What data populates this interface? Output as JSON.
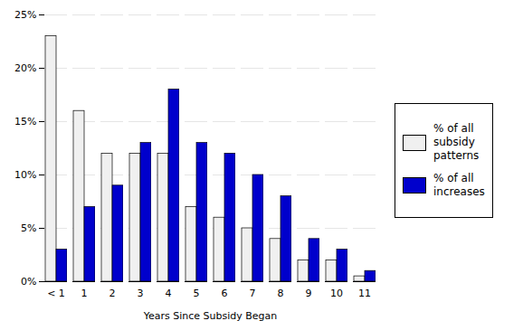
{
  "chart_data": {
    "type": "bar",
    "categories": [
      "< 1",
      "1",
      "2",
      "3",
      "4",
      "5",
      "6",
      "7",
      "8",
      "9",
      "10",
      "11"
    ],
    "series": [
      {
        "name": "% of all\nsubsidy\npatterns",
        "color": "#f0f0f0",
        "values": [
          23,
          16,
          12,
          12,
          12,
          7,
          6,
          5,
          4,
          2,
          2,
          0.5
        ]
      },
      {
        "name": "% of all\nincreases",
        "color": "#0000cc",
        "values": [
          3,
          7,
          9,
          13,
          18,
          13,
          12,
          10,
          8,
          4,
          3,
          1
        ]
      }
    ],
    "xlabel": "Years Since Subsidy Began",
    "ylim": [
      0,
      25
    ],
    "yticks": [
      {
        "value": 0,
        "label": "0%"
      },
      {
        "value": 5,
        "label": "5%"
      },
      {
        "value": 10,
        "label": "10%"
      },
      {
        "value": 15,
        "label": "15%"
      },
      {
        "value": 20,
        "label": "20%"
      },
      {
        "value": 25,
        "label": "25%"
      }
    ],
    "grid": true,
    "legend": "right"
  }
}
